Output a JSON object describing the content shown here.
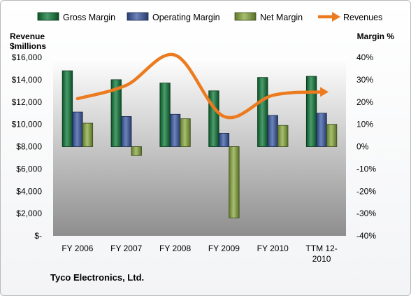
{
  "chart_data": {
    "type": "bar",
    "categories": [
      "FY 2006",
      "FY 2007",
      "FY 2008",
      "FY 2009",
      "FY 2010",
      "TTM 12-2010"
    ],
    "category_lines": [
      [
        "FY 2006"
      ],
      [
        "FY 2007"
      ],
      [
        "FY 2008"
      ],
      [
        "FY 2009"
      ],
      [
        "FY 2010"
      ],
      [
        "TTM 12-",
        "2010"
      ]
    ],
    "series": [
      {
        "name": "Gross Margin",
        "axis": "right",
        "kind": "bar",
        "color": "#0f7a3a",
        "values": [
          34,
          30,
          28.5,
          25,
          31,
          31.5
        ]
      },
      {
        "name": "Operating Margin",
        "axis": "right",
        "kind": "bar",
        "color": "#3b5ba6",
        "values": [
          15.5,
          13.5,
          14.5,
          6,
          14,
          15
        ]
      },
      {
        "name": "Net Margin",
        "axis": "right",
        "kind": "bar",
        "color": "#8aab3f",
        "values": [
          10.5,
          -4,
          12.5,
          -32,
          9.5,
          10
        ]
      },
      {
        "name": "Revenues",
        "axis": "left",
        "kind": "line",
        "color": "#ec7a1e",
        "values": [
          12300,
          13500,
          16200,
          10700,
          12600,
          12900
        ]
      }
    ],
    "left_axis": {
      "title_lines": [
        "Revenue",
        "$millions"
      ],
      "min": 0,
      "max": 16000,
      "step": 2000,
      "tick_labels": [
        "$-",
        "$2,000",
        "$4,000",
        "$6,000",
        "$8,000",
        "$10,000",
        "$12,000",
        "$14,000",
        "$16,000"
      ]
    },
    "right_axis": {
      "title": "Margin %",
      "min": -40,
      "max": 40,
      "step": 10,
      "tick_labels": [
        "-40%",
        "-30%",
        "-20%",
        "-10%",
        "0%",
        "10%",
        "20%",
        "30%",
        "40%"
      ]
    },
    "legend_position": "top",
    "grid": false,
    "company": "Tyco Electronics, Ltd."
  }
}
